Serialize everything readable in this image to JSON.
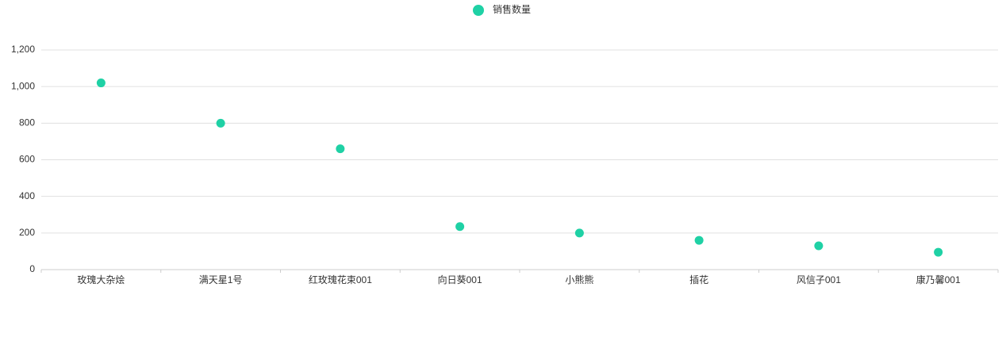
{
  "chart_data": {
    "type": "scatter",
    "categories": [
      "玫瑰大杂烩",
      "满天星1号",
      "红玫瑰花束001",
      "向日葵001",
      "小熊熊",
      "插花",
      "风信子001",
      "康乃馨001"
    ],
    "series": [
      {
        "name": "销售数量",
        "color": "#1fd1a5",
        "values": [
          1020,
          800,
          660,
          235,
          200,
          160,
          130,
          95
        ]
      }
    ],
    "ylim": [
      0,
      1200
    ],
    "yticks": [
      0,
      200,
      400,
      600,
      800,
      {
        "value": 1000,
        "label": "1,000"
      },
      {
        "value": 1200,
        "label": "1,200"
      }
    ],
    "grid": true,
    "legend": "top"
  }
}
